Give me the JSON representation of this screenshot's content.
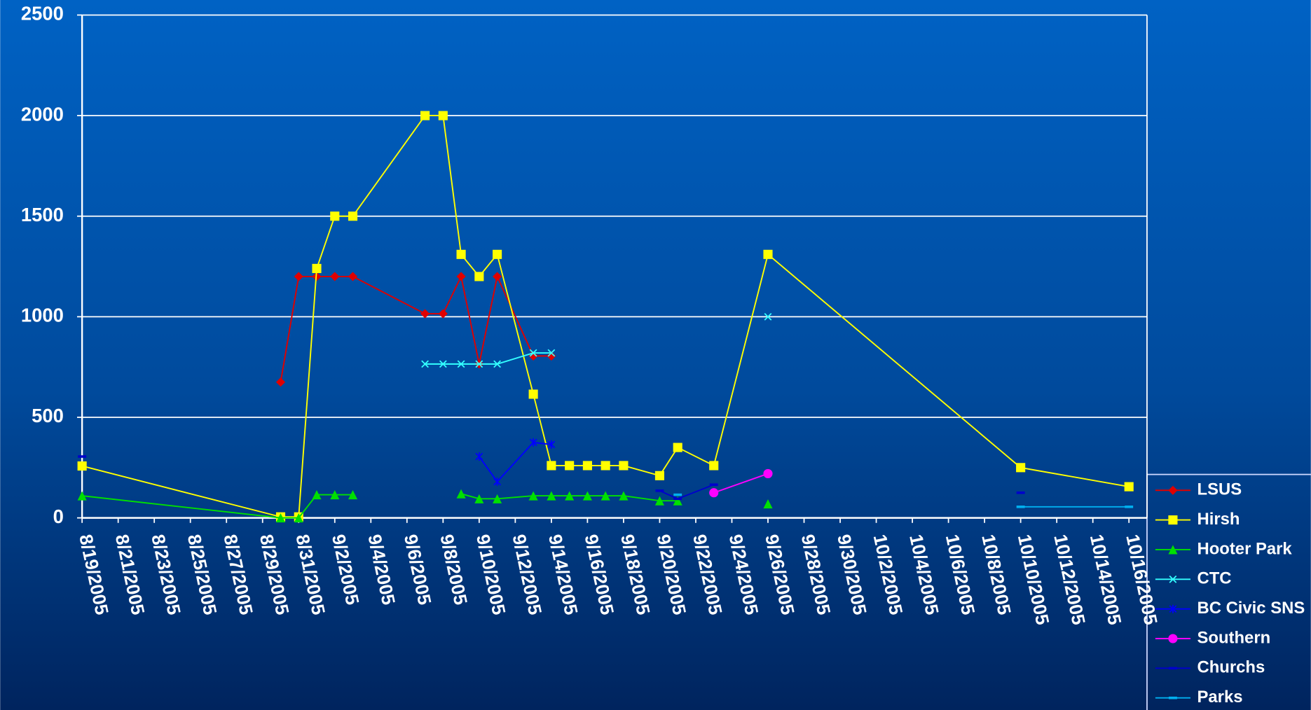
{
  "chart_data": {
    "type": "line",
    "x": [
      "8/19/2005",
      "8/30/2005",
      "8/31/2005",
      "9/1/2005",
      "9/2/2005",
      "9/3/2005",
      "9/7/2005",
      "9/8/2005",
      "9/9/2005",
      "9/10/2005",
      "9/11/2005",
      "9/13/2005",
      "9/14/2005",
      "9/15/2005",
      "9/16/2005",
      "9/17/2005",
      "9/18/2005",
      "9/20/2005",
      "9/21/2005",
      "9/23/2005",
      "9/26/2005",
      "10/10/2005",
      "10/16/2005"
    ],
    "xlim": [
      "8/19/2005",
      "10/17/2005"
    ],
    "xticks": [
      "8/19/2005",
      "8/21/2005",
      "8/23/2005",
      "8/25/2005",
      "8/27/2005",
      "8/29/2005",
      "8/31/2005",
      "9/2/2005",
      "9/4/2005",
      "9/6/2005",
      "9/8/2005",
      "9/10/2005",
      "9/12/2005",
      "9/14/2005",
      "9/16/2005",
      "9/18/2005",
      "9/20/2005",
      "9/22/2005",
      "9/24/2005",
      "9/26/2005",
      "9/28/2005",
      "9/30/2005",
      "10/2/2005",
      "10/4/2005",
      "10/6/2005",
      "10/8/2005",
      "10/10/2005",
      "10/12/2005",
      "10/14/2005",
      "10/16/2005"
    ],
    "ylim": [
      0,
      2500
    ],
    "yticks": [
      0,
      500,
      1000,
      1500,
      2000,
      2500
    ],
    "grid": true,
    "legend": "right",
    "series": [
      {
        "name": "LSUS",
        "color": "#e00000",
        "marker": "diamond",
        "values": [
          null,
          675,
          1200,
          1200,
          1200,
          1200,
          1015,
          1015,
          1200,
          765,
          1200,
          805,
          805,
          null,
          null,
          null,
          null,
          null,
          null,
          null,
          null,
          null,
          null
        ]
      },
      {
        "name": "Hirsh",
        "color": "#ffff00",
        "marker": "square",
        "values": [
          258,
          5,
          5,
          1240,
          1500,
          1500,
          2000,
          2000,
          1310,
          1200,
          1310,
          615,
          260,
          260,
          260,
          260,
          260,
          210,
          350,
          260,
          1310,
          250,
          155
        ]
      },
      {
        "name": "Hooter Park",
        "color": "#00e000",
        "marker": "triangle",
        "values": [
          110,
          0,
          0,
          115,
          115,
          115,
          null,
          null,
          120,
          95,
          95,
          110,
          110,
          110,
          110,
          110,
          110,
          85,
          85,
          null,
          70,
          null,
          null
        ]
      },
      {
        "name": "CTC",
        "color": "#33ffff",
        "marker": "x",
        "values": [
          null,
          null,
          null,
          null,
          null,
          null,
          765,
          765,
          765,
          765,
          765,
          820,
          820,
          null,
          null,
          null,
          null,
          null,
          null,
          null,
          1000,
          null,
          null
        ]
      },
      {
        "name": "BC Civic SNS",
        "color": "#0000ff",
        "marker": "star",
        "values": [
          null,
          null,
          null,
          null,
          null,
          null,
          null,
          null,
          null,
          305,
          180,
          375,
          365,
          null,
          null,
          null,
          null,
          null,
          null,
          null,
          null,
          null,
          null
        ]
      },
      {
        "name": "Southern",
        "color": "#ff00ff",
        "marker": "circle",
        "values": [
          null,
          null,
          null,
          null,
          null,
          null,
          null,
          null,
          null,
          null,
          null,
          null,
          null,
          null,
          null,
          null,
          null,
          null,
          null,
          125,
          220,
          null,
          null
        ]
      },
      {
        "name": "Churchs",
        "color": "#0000cc",
        "marker": "dash",
        "values": [
          305,
          null,
          null,
          null,
          null,
          null,
          null,
          null,
          null,
          null,
          null,
          null,
          null,
          null,
          null,
          null,
          null,
          135,
          95,
          165,
          null,
          125,
          null
        ]
      },
      {
        "name": "Parks",
        "color": "#00b0f0",
        "marker": "dash",
        "values": [
          null,
          null,
          null,
          null,
          null,
          null,
          null,
          null,
          null,
          null,
          null,
          null,
          null,
          null,
          null,
          null,
          null,
          null,
          115,
          null,
          null,
          55,
          55
        ]
      }
    ]
  }
}
